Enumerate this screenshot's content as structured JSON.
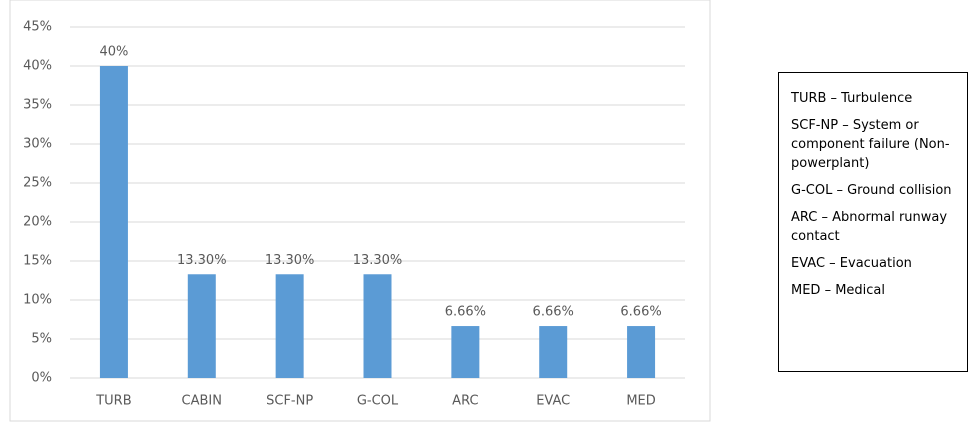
{
  "chart_data": {
    "type": "bar",
    "categories": [
      "TURB",
      "CABIN",
      "SCF-NP",
      "G-COL",
      "ARC",
      "EVAC",
      "MED"
    ],
    "values": [
      40,
      13.3,
      13.3,
      13.3,
      6.66,
      6.66,
      6.66
    ],
    "value_labels": [
      "40%",
      "13.30%",
      "13.30%",
      "13.30%",
      "6.66%",
      "6.66%",
      "6.66%"
    ],
    "color": "#5b9bd5",
    "ylim": [
      0,
      45
    ],
    "yticks": [
      {
        "value": 0,
        "label": "0%"
      },
      {
        "value": 5,
        "label": "5%"
      },
      {
        "value": 10,
        "label": "10%"
      },
      {
        "value": 15,
        "label": "15%"
      },
      {
        "value": 20,
        "label": "20%"
      },
      {
        "value": 25,
        "label": "25%"
      },
      {
        "value": 30,
        "label": "30%"
      },
      {
        "value": 35,
        "label": "35%"
      },
      {
        "value": 40,
        "label": "40%"
      },
      {
        "value": 45,
        "label": "45%"
      }
    ],
    "grid": true,
    "key_notes": [
      "TURB – Turbulence",
      "SCF-NP – System or component failure (Non-powerplant)",
      "G-COL – Ground collision",
      "ARC – Abnormal runway contact",
      "EVAC – Evacuation",
      "MED – Medical"
    ]
  }
}
